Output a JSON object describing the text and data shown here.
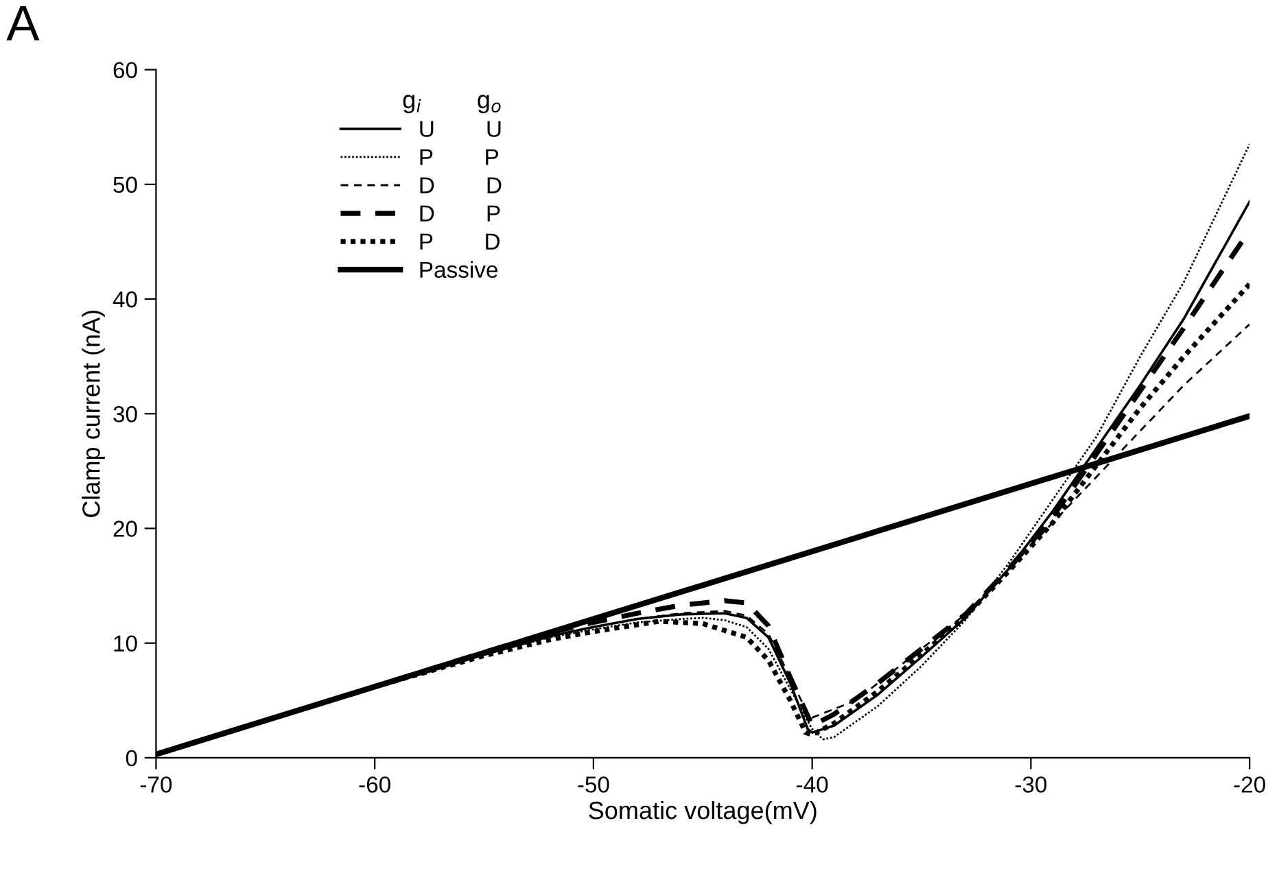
{
  "chart_data": {
    "type": "line",
    "xlabel": "Somatic voltage(mV)",
    "ylabel": "Clamp current (nA)",
    "legend_title": "g$_{i}$        g$_{o}$",
    "annotations": [
      "A"
    ],
    "xlim": [
      -70,
      -20
    ],
    "xticks": [
      -70,
      -60,
      -50,
      -40,
      -30,
      -20
    ],
    "ylim": [
      0,
      60
    ],
    "yticks": [
      0,
      10,
      20,
      30,
      40,
      50,
      60
    ],
    "grid": false,
    "legend": "top left",
    "marker": "none",
    "series": [
      {
        "name": "U        U",
        "color": "#000000",
        "line_style": "solid",
        "x": [
          -70,
          -60,
          -55,
          -52,
          -50,
          -48,
          -46,
          -44,
          -43,
          -42,
          -41,
          -40.2,
          -40,
          -39,
          -37,
          -35,
          -33,
          -31,
          -29,
          -27,
          -25,
          -23,
          -20
        ],
        "values": [
          0.3,
          6.2,
          9.0,
          10.6,
          11.4,
          12.1,
          12.5,
          12.6,
          12.2,
          10.5,
          6.5,
          2.5,
          2.2,
          2.8,
          5.5,
          8.8,
          12.2,
          16.5,
          21.5,
          27,
          32.5,
          38.3,
          48.5
        ]
      },
      {
        "name": "P        P",
        "color": "#000000",
        "line_style": "dotted",
        "x": [
          -70,
          -60,
          -55,
          -52,
          -50,
          -48,
          -46,
          -45,
          -44,
          -43,
          -42,
          -41,
          -40,
          -39.5,
          -39,
          -37,
          -35,
          -33,
          -31,
          -29,
          -27,
          -25,
          -23,
          -20
        ],
        "values": [
          0.3,
          6.2,
          9.0,
          10.5,
          11.2,
          11.8,
          12.1,
          12.2,
          12.0,
          11.4,
          9.5,
          6.0,
          2.5,
          1.6,
          1.8,
          4.5,
          8,
          12,
          17,
          22.5,
          28,
          35,
          41.5,
          53.5
        ]
      },
      {
        "name": "D        D",
        "color": "#000000",
        "line_style": "dashed",
        "x": [
          -70,
          -60,
          -55,
          -52,
          -50,
          -48,
          -46,
          -44,
          -43,
          -42,
          -41,
          -40.2,
          -40,
          -38,
          -35,
          -33,
          -31,
          -29,
          -27,
          -25,
          -23,
          -20
        ],
        "values": [
          0.3,
          6.2,
          9.0,
          10.6,
          11.4,
          12.1,
          12.6,
          12.8,
          12.4,
          10.8,
          7.0,
          3.8,
          3.5,
          5.0,
          9.5,
          12.5,
          16.5,
          20.5,
          24.5,
          28.5,
          32.5,
          37.8
        ]
      },
      {
        "name": "D        P",
        "color": "#000000",
        "line_style": "dashed",
        "x": [
          -70,
          -60,
          -55,
          -52,
          -50,
          -48,
          -46,
          -44,
          -43,
          -42,
          -41,
          -40,
          -39,
          -37,
          -35,
          -33,
          -31,
          -29,
          -27,
          -25,
          -23,
          -20
        ],
        "values": [
          0.3,
          6.2,
          9.2,
          10.9,
          11.8,
          12.6,
          13.3,
          13.7,
          13.5,
          11.5,
          7.0,
          2.8,
          3.8,
          6.5,
          9.5,
          12.5,
          16.5,
          21,
          26.5,
          32,
          37.5,
          46
        ]
      },
      {
        "name": "P        D",
        "color": "#000000",
        "line_style": "dotted",
        "x": [
          -70,
          -60,
          -55,
          -52,
          -50,
          -47,
          -45,
          -43,
          -42,
          -41,
          -40.3,
          -40,
          -39,
          -37,
          -35,
          -33,
          -31,
          -29,
          -27,
          -25,
          -23,
          -20
        ],
        "values": [
          0.3,
          6.2,
          8.9,
          10.3,
          11.0,
          11.9,
          11.7,
          10.5,
          8.5,
          5.0,
          2.2,
          2.0,
          3.0,
          5.8,
          9,
          12.3,
          16.3,
          20.5,
          25.5,
          30.5,
          35,
          41.3
        ]
      },
      {
        "name": "Passive",
        "color": "#000000",
        "line_style": "solid",
        "x": [
          -70,
          -60,
          -50,
          -40,
          -30,
          -20
        ],
        "values": [
          0.3,
          6.2,
          12.1,
          18.0,
          23.9,
          29.8
        ]
      }
    ]
  }
}
